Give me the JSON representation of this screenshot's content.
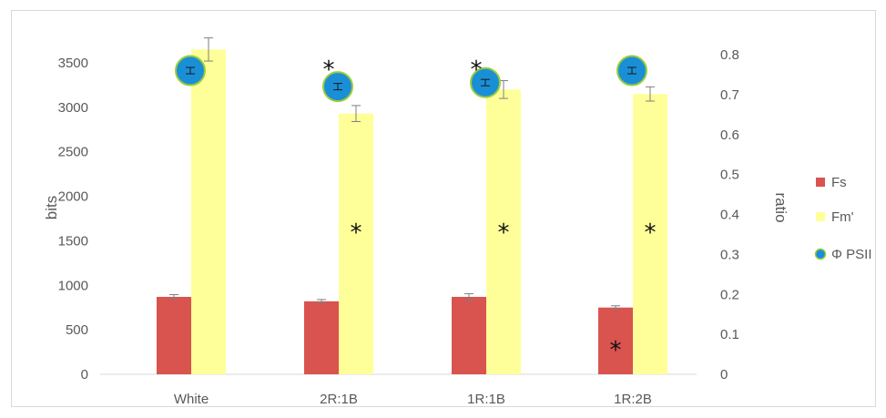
{
  "chart_data": {
    "type": "bar",
    "categories": [
      "White",
      "2R:1B",
      "1R:1B",
      "1R:2B"
    ],
    "series": [
      {
        "name": "Fs",
        "axis": "left",
        "color": "#d9534f",
        "values": [
          870,
          820,
          870,
          750
        ],
        "errors": [
          25,
          20,
          35,
          20
        ]
      },
      {
        "name": "Fm'",
        "axis": "left",
        "color": "#ffff99",
        "values": [
          3650,
          2930,
          3200,
          3150
        ],
        "errors": [
          130,
          90,
          100,
          80
        ]
      },
      {
        "name": "Φ PSII",
        "axis": "right",
        "marker": "circle",
        "color": "#1a8fd6",
        "values": [
          0.76,
          0.72,
          0.73,
          0.76
        ],
        "errors": [
          0.005,
          0.008,
          0.008,
          0.008
        ]
      }
    ],
    "ylabel": "bits",
    "ylabel_right": "ratio",
    "ylim": [
      0,
      3500
    ],
    "ylim_right": [
      0,
      0.8
    ],
    "yticks": [
      "0",
      "500",
      "1000",
      "1500",
      "2000",
      "2500",
      "3000",
      "3500"
    ],
    "yticks_right": [
      "0",
      "0.1",
      "0.2",
      "0.3",
      "0.4",
      "0.5",
      "0.6",
      "0.7",
      "0.8"
    ],
    "significance_marker": "*",
    "significance": [
      {
        "category": "2R:1B",
        "series": "Fm'"
      },
      {
        "category": "1R:1B",
        "series": "Fm'"
      },
      {
        "category": "1R:2B",
        "series": "Fm'"
      },
      {
        "category": "1R:2B",
        "series": "Fs"
      },
      {
        "category": "2R:1B",
        "series": "Φ PSII"
      },
      {
        "category": "1R:1B",
        "series": "Φ PSII"
      }
    ],
    "legend_position": "right",
    "grid": false
  }
}
